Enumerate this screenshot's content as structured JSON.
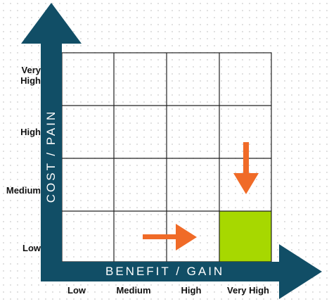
{
  "axes": {
    "y_title": "COST / PAIN",
    "x_title": "BENEFIT / GAIN",
    "y_levels": [
      "Very\nHigh",
      "High",
      "Medium",
      "Low"
    ],
    "x_levels": [
      "Low",
      "Medium",
      "High",
      "Very High"
    ]
  },
  "colors": {
    "axis": "#114e66",
    "arrow": "#f06b28",
    "highlight": "#a7d800",
    "grid_line": "#222222"
  },
  "highlight_cell": {
    "benefit": "Very High",
    "cost": "Low"
  },
  "icons": [
    "right-arrow-icon",
    "down-arrow-icon"
  ]
}
